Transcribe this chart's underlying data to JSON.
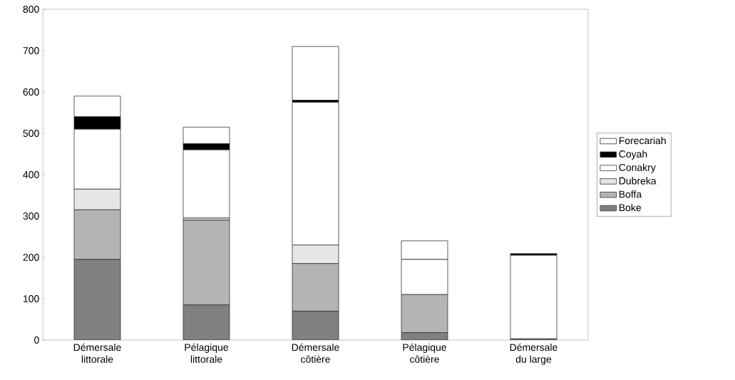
{
  "chart_data": {
    "type": "bar",
    "stacked": true,
    "categories": [
      "Démersale\nlittorale",
      "Pélagique\nlittorale",
      "Démersale\ncôtière",
      "Pélagique\ncôtière",
      "Démersale\ndu large"
    ],
    "series": [
      {
        "name": "Boke",
        "color": "#808080",
        "values": [
          195,
          85,
          70,
          18,
          3
        ]
      },
      {
        "name": "Boffa",
        "color": "#b4b4b4",
        "values": [
          120,
          205,
          115,
          92,
          0
        ]
      },
      {
        "name": "Dubreka",
        "color": "#e6e6e6",
        "values": [
          50,
          5,
          45,
          0,
          0
        ]
      },
      {
        "name": "Conakry",
        "color": "#ffffff",
        "values": [
          145,
          165,
          345,
          85,
          202
        ]
      },
      {
        "name": "Coyah",
        "color": "#000000",
        "values": [
          30,
          15,
          5,
          0,
          4
        ]
      },
      {
        "name": "Forecariah",
        "color": "#ffffff",
        "values": [
          50,
          40,
          130,
          45,
          0
        ]
      }
    ],
    "ylim": [
      0,
      800
    ],
    "yticks": [
      0,
      100,
      200,
      300,
      400,
      500,
      600,
      700,
      800
    ],
    "grid": false,
    "legend": "right"
  }
}
